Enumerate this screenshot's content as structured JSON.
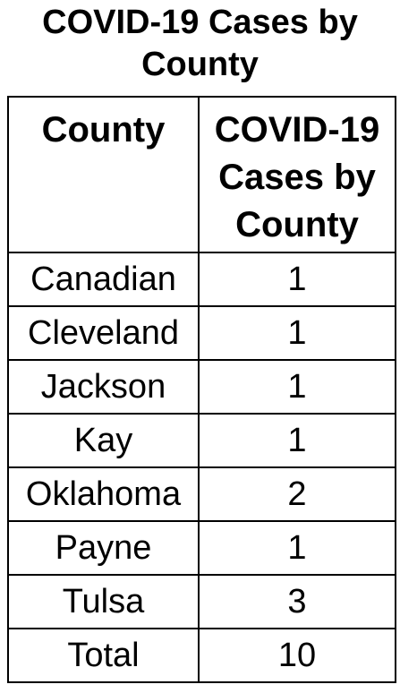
{
  "title": "COVID-19 Cases by County",
  "table": {
    "header": [
      "County",
      "COVID-19 Cases by County"
    ],
    "rows": [
      [
        "Canadian",
        1
      ],
      [
        "Cleveland",
        1
      ],
      [
        "Jackson",
        1
      ],
      [
        "Kay",
        1
      ],
      [
        "Oklahoma",
        2
      ],
      [
        "Payne",
        1
      ],
      [
        "Tulsa",
        3
      ],
      [
        "Total",
        10
      ]
    ]
  }
}
